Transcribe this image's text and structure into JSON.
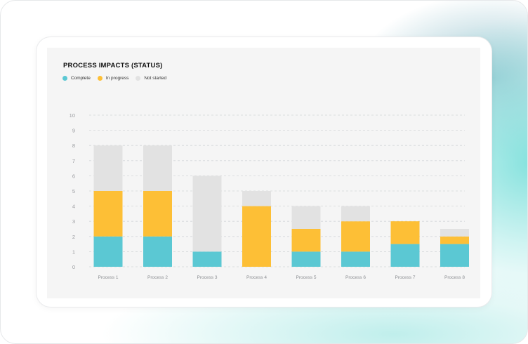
{
  "chart_data": {
    "type": "bar",
    "stacked": true,
    "title": "PROCESS IMPACTS (STATUS)",
    "categories": [
      "Process 1",
      "Process 2",
      "Process 3",
      "Process 4",
      "Process 5",
      "Process 6",
      "Process 7",
      "Process 8"
    ],
    "series": [
      {
        "name": "Complete",
        "color": "#5bc8d3",
        "values": [
          2,
          2,
          1,
          0,
          1,
          1,
          1.5,
          1.5
        ]
      },
      {
        "name": "In progress",
        "color": "#fdbf36",
        "values": [
          3,
          3,
          0,
          4,
          1.5,
          2,
          1.5,
          0.5
        ]
      },
      {
        "name": "Not started",
        "color": "#e2e2e2",
        "values": [
          3,
          3,
          5,
          1,
          1.5,
          1,
          0,
          0.5
        ]
      }
    ],
    "yticks": [
      0,
      1,
      2,
      3,
      4,
      5,
      6,
      7,
      8,
      9,
      10
    ],
    "ylim": [
      0,
      10
    ],
    "legend_position": "top-left",
    "grid": true
  }
}
